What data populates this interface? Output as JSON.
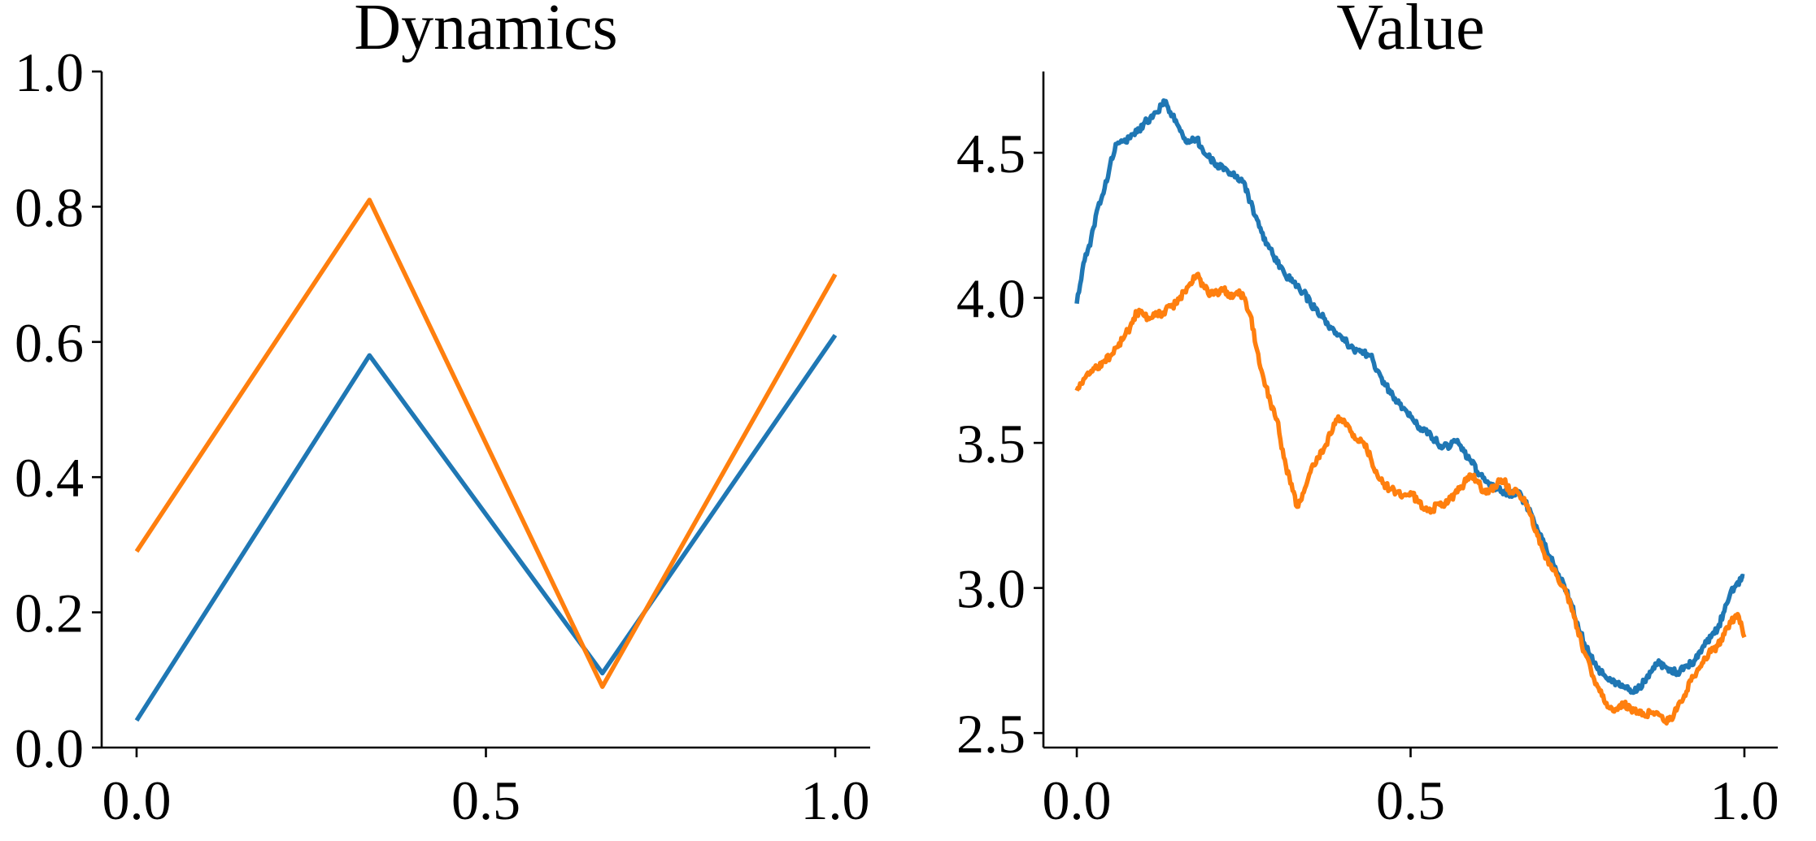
{
  "colors": {
    "blue": "#1f77b4",
    "orange": "#ff7f0e",
    "axis": "#000000"
  },
  "chart_data": [
    {
      "type": "line",
      "title": "Dynamics",
      "xlabel": "",
      "ylabel": "",
      "xlim": [
        -0.05,
        1.05
      ],
      "ylim": [
        0.0,
        1.0
      ],
      "x_ticks": [
        0.0,
        0.5,
        1.0
      ],
      "x_tick_labels": [
        "0.0",
        "0.5",
        "1.0"
      ],
      "y_ticks": [
        0.0,
        0.2,
        0.4,
        0.6,
        0.8,
        1.0
      ],
      "y_tick_labels": [
        "0.0",
        "0.2",
        "0.4",
        "0.6",
        "0.8",
        "1.0"
      ],
      "grid": false,
      "legend": "none",
      "series": [
        {
          "color": "#1f77b4",
          "x": [
            0.0,
            0.3333,
            0.6667,
            1.0
          ],
          "values": [
            0.04,
            0.58,
            0.11,
            0.61
          ]
        },
        {
          "color": "#ff7f0e",
          "x": [
            0.0,
            0.3333,
            0.6667,
            1.0
          ],
          "values": [
            0.29,
            0.81,
            0.09,
            0.7
          ]
        }
      ]
    },
    {
      "type": "line",
      "title": "Value",
      "xlabel": "",
      "ylabel": "",
      "xlim": [
        -0.05,
        1.05
      ],
      "ylim": [
        2.45,
        4.78
      ],
      "x_ticks": [
        0.0,
        0.5,
        1.0
      ],
      "x_tick_labels": [
        "0.0",
        "0.5",
        "1.0"
      ],
      "y_ticks": [
        2.5,
        3.0,
        3.5,
        4.0,
        4.5
      ],
      "y_tick_labels": [
        "2.5",
        "3.0",
        "3.5",
        "4.0",
        "4.5"
      ],
      "grid": false,
      "legend": "none",
      "series": [
        {
          "color": "#1f77b4",
          "x": [
            0.0,
            0.01,
            0.02,
            0.03,
            0.04,
            0.05,
            0.06,
            0.07,
            0.08,
            0.09,
            0.1,
            0.11,
            0.12,
            0.13,
            0.14,
            0.15,
            0.16,
            0.17,
            0.18,
            0.19,
            0.2,
            0.21,
            0.22,
            0.23,
            0.24,
            0.25,
            0.26,
            0.27,
            0.28,
            0.29,
            0.3,
            0.31,
            0.32,
            0.33,
            0.34,
            0.35,
            0.36,
            0.37,
            0.38,
            0.39,
            0.4,
            0.41,
            0.42,
            0.43,
            0.44,
            0.45,
            0.46,
            0.47,
            0.48,
            0.49,
            0.5,
            0.51,
            0.52,
            0.53,
            0.54,
            0.55,
            0.56,
            0.57,
            0.58,
            0.59,
            0.6,
            0.61,
            0.62,
            0.63,
            0.64,
            0.65,
            0.66,
            0.67,
            0.68,
            0.69,
            0.7,
            0.71,
            0.72,
            0.73,
            0.74,
            0.75,
            0.76,
            0.77,
            0.78,
            0.79,
            0.8,
            0.81,
            0.82,
            0.83,
            0.84,
            0.85,
            0.86,
            0.87,
            0.88,
            0.89,
            0.9,
            0.91,
            0.92,
            0.93,
            0.94,
            0.95,
            0.96,
            0.97,
            0.98,
            0.99,
            1.0
          ],
          "values": [
            3.98,
            4.12,
            4.18,
            4.3,
            4.36,
            4.46,
            4.53,
            4.54,
            4.55,
            4.57,
            4.6,
            4.62,
            4.64,
            4.68,
            4.64,
            4.6,
            4.55,
            4.54,
            4.55,
            4.5,
            4.48,
            4.46,
            4.44,
            4.43,
            4.42,
            4.4,
            4.33,
            4.27,
            4.2,
            4.17,
            4.12,
            4.09,
            4.06,
            4.04,
            4.02,
            3.98,
            3.96,
            3.93,
            3.9,
            3.87,
            3.86,
            3.83,
            3.82,
            3.81,
            3.8,
            3.75,
            3.71,
            3.67,
            3.64,
            3.62,
            3.59,
            3.56,
            3.55,
            3.53,
            3.5,
            3.49,
            3.49,
            3.51,
            3.47,
            3.44,
            3.4,
            3.38,
            3.36,
            3.34,
            3.33,
            3.32,
            3.33,
            3.3,
            3.26,
            3.2,
            3.15,
            3.1,
            3.05,
            3.01,
            2.95,
            2.88,
            2.81,
            2.76,
            2.72,
            2.7,
            2.68,
            2.67,
            2.66,
            2.64,
            2.65,
            2.68,
            2.71,
            2.74,
            2.73,
            2.72,
            2.71,
            2.73,
            2.74,
            2.76,
            2.8,
            2.83,
            2.86,
            2.92,
            2.99,
            3.02,
            3.04
          ]
        },
        {
          "color": "#ff7f0e",
          "x": [
            0.0,
            0.01,
            0.02,
            0.03,
            0.04,
            0.05,
            0.06,
            0.07,
            0.08,
            0.09,
            0.1,
            0.11,
            0.12,
            0.13,
            0.14,
            0.15,
            0.16,
            0.17,
            0.18,
            0.19,
            0.2,
            0.21,
            0.22,
            0.23,
            0.24,
            0.25,
            0.26,
            0.27,
            0.28,
            0.29,
            0.3,
            0.31,
            0.32,
            0.33,
            0.34,
            0.35,
            0.36,
            0.37,
            0.38,
            0.39,
            0.4,
            0.41,
            0.42,
            0.43,
            0.44,
            0.45,
            0.46,
            0.47,
            0.48,
            0.49,
            0.5,
            0.51,
            0.52,
            0.53,
            0.54,
            0.55,
            0.56,
            0.57,
            0.58,
            0.59,
            0.6,
            0.61,
            0.62,
            0.63,
            0.64,
            0.65,
            0.66,
            0.67,
            0.68,
            0.69,
            0.7,
            0.71,
            0.72,
            0.73,
            0.74,
            0.75,
            0.76,
            0.77,
            0.78,
            0.79,
            0.8,
            0.81,
            0.82,
            0.83,
            0.84,
            0.85,
            0.86,
            0.87,
            0.88,
            0.89,
            0.9,
            0.91,
            0.92,
            0.93,
            0.94,
            0.95,
            0.96,
            0.97,
            0.98,
            0.99,
            1.0
          ],
          "values": [
            3.68,
            3.72,
            3.74,
            3.76,
            3.78,
            3.8,
            3.83,
            3.86,
            3.9,
            3.95,
            3.94,
            3.93,
            3.94,
            3.95,
            3.97,
            3.98,
            4.02,
            4.05,
            4.08,
            4.04,
            4.01,
            4.02,
            4.03,
            4.0,
            4.02,
            4.0,
            3.94,
            3.82,
            3.72,
            3.64,
            3.58,
            3.45,
            3.36,
            3.28,
            3.33,
            3.4,
            3.45,
            3.48,
            3.53,
            3.58,
            3.58,
            3.54,
            3.51,
            3.5,
            3.45,
            3.39,
            3.36,
            3.34,
            3.33,
            3.32,
            3.33,
            3.3,
            3.27,
            3.26,
            3.29,
            3.28,
            3.31,
            3.33,
            3.36,
            3.39,
            3.37,
            3.33,
            3.34,
            3.36,
            3.37,
            3.33,
            3.33,
            3.31,
            3.25,
            3.18,
            3.12,
            3.08,
            3.04,
            3.0,
            2.94,
            2.86,
            2.78,
            2.72,
            2.66,
            2.61,
            2.59,
            2.58,
            2.6,
            2.58,
            2.57,
            2.56,
            2.57,
            2.57,
            2.54,
            2.55,
            2.59,
            2.63,
            2.68,
            2.72,
            2.76,
            2.78,
            2.8,
            2.84,
            2.88,
            2.91,
            2.83
          ]
        }
      ]
    }
  ]
}
